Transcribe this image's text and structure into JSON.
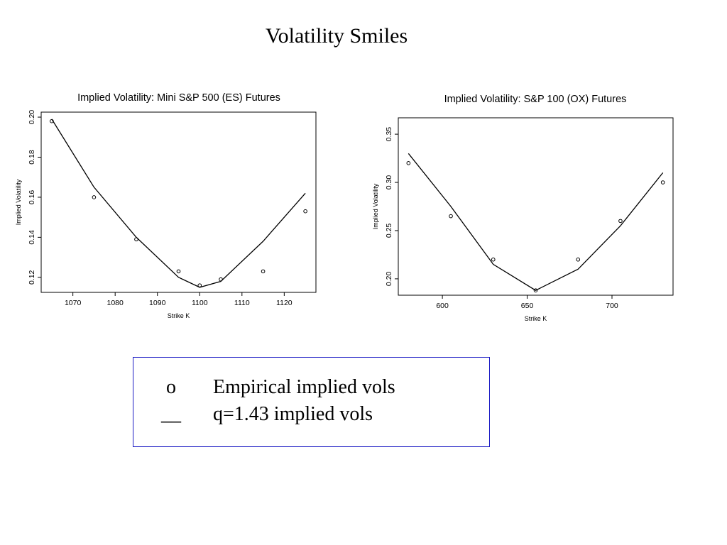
{
  "slide": {
    "title": "Volatility Smiles"
  },
  "chart_data": [
    {
      "type": "scatter",
      "title": "Implied Volatility:  Mini S&P 500 (ES) Futures",
      "xlabel": "Strike K",
      "ylabel": "Implied Volatility",
      "xlim": [
        1062.5,
        1127.5
      ],
      "ylim": [
        0.1125,
        0.2025
      ],
      "xticks": [
        1070,
        1080,
        1090,
        1100,
        1110,
        1120
      ],
      "yticks": [
        0.12,
        0.14,
        0.16,
        0.18,
        0.2
      ],
      "ytick_labels": [
        "0.12",
        "0.14",
        "0.16",
        "0.18",
        "0.20"
      ],
      "grid": false,
      "legend": "none",
      "series": [
        {
          "kind": "points",
          "x": [
            1065,
            1075,
            1085,
            1095,
            1100,
            1105,
            1115,
            1125
          ],
          "values": [
            0.198,
            0.16,
            0.139,
            0.123,
            0.116,
            0.119,
            0.123,
            0.153
          ]
        },
        {
          "kind": "line",
          "x": [
            1065,
            1075,
            1085,
            1095,
            1100,
            1105,
            1115,
            1125
          ],
          "values": [
            0.199,
            0.165,
            0.14,
            0.12,
            0.115,
            0.118,
            0.138,
            0.162
          ]
        }
      ]
    },
    {
      "type": "scatter",
      "title": "Implied Volatility:  S&P 100 (OX) Futures",
      "xlabel": "Strike K",
      "ylabel": "Implied Volatility",
      "xlim": [
        574,
        736
      ],
      "ylim": [
        0.183,
        0.367
      ],
      "xticks": [
        600,
        650,
        700
      ],
      "yticks": [
        0.2,
        0.25,
        0.3,
        0.35
      ],
      "ytick_labels": [
        "0.20",
        "0.25",
        "0.30",
        "0.35"
      ],
      "grid": false,
      "legend": "none",
      "series": [
        {
          "kind": "points",
          "x": [
            580,
            605,
            630,
            655,
            680,
            705,
            730
          ],
          "values": [
            0.32,
            0.265,
            0.22,
            0.188,
            0.22,
            0.26,
            0.3
          ]
        },
        {
          "kind": "line",
          "x": [
            580,
            605,
            630,
            655,
            680,
            705,
            730
          ],
          "values": [
            0.33,
            0.275,
            0.215,
            0.188,
            0.21,
            0.255,
            0.31
          ]
        }
      ]
    }
  ],
  "legend_box": {
    "items": [
      {
        "symbol": "o",
        "label": "Empirical implied vols"
      },
      {
        "symbol": "__",
        "label": "q=1.43 implied vols"
      }
    ]
  }
}
